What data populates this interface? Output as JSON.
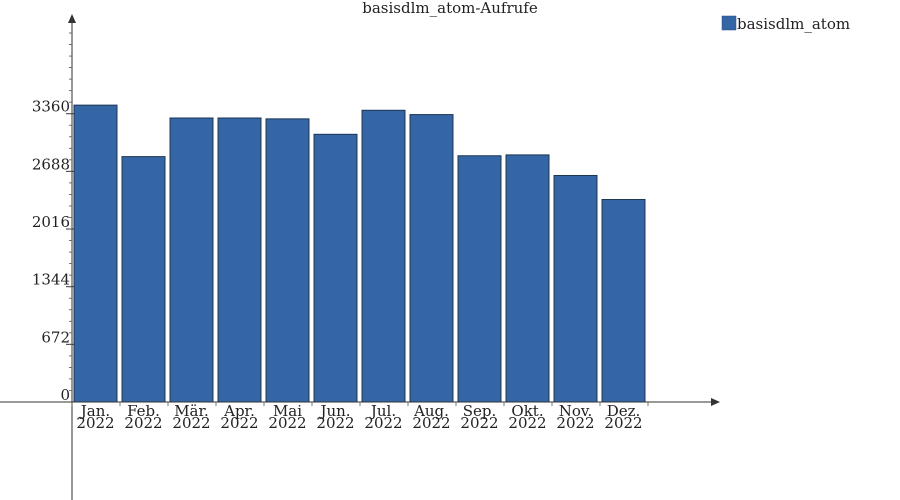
{
  "chart_data": {
    "type": "bar",
    "title": "basisdlm_atom-Aufrufe",
    "xlabel": "",
    "ylabel": "",
    "categories": [
      [
        "Jan.",
        "2022"
      ],
      [
        "Feb.",
        "2022"
      ],
      [
        "Mär.",
        "2022"
      ],
      [
        "Apr.",
        "2022"
      ],
      [
        "Mai",
        "2022"
      ],
      [
        "Jun.",
        "2022"
      ],
      [
        "Jul.",
        "2022"
      ],
      [
        "Aug.",
        "2022"
      ],
      [
        "Sep.",
        "2022"
      ],
      [
        "Okt.",
        "2022"
      ],
      [
        "Nov.",
        "2022"
      ],
      [
        "Dez.",
        "2022"
      ]
    ],
    "series": [
      {
        "name": "basisdlm_atom",
        "values": [
          3460,
          2860,
          3310,
          3310,
          3300,
          3120,
          3400,
          3350,
          2870,
          2880,
          2640,
          2360
        ],
        "color": "#3465a4"
      }
    ],
    "yticks": [
      0,
      672,
      1344,
      2016,
      2688,
      3360
    ],
    "ylim": [
      0,
      4400
    ],
    "grid": false,
    "legend": "top-right"
  }
}
